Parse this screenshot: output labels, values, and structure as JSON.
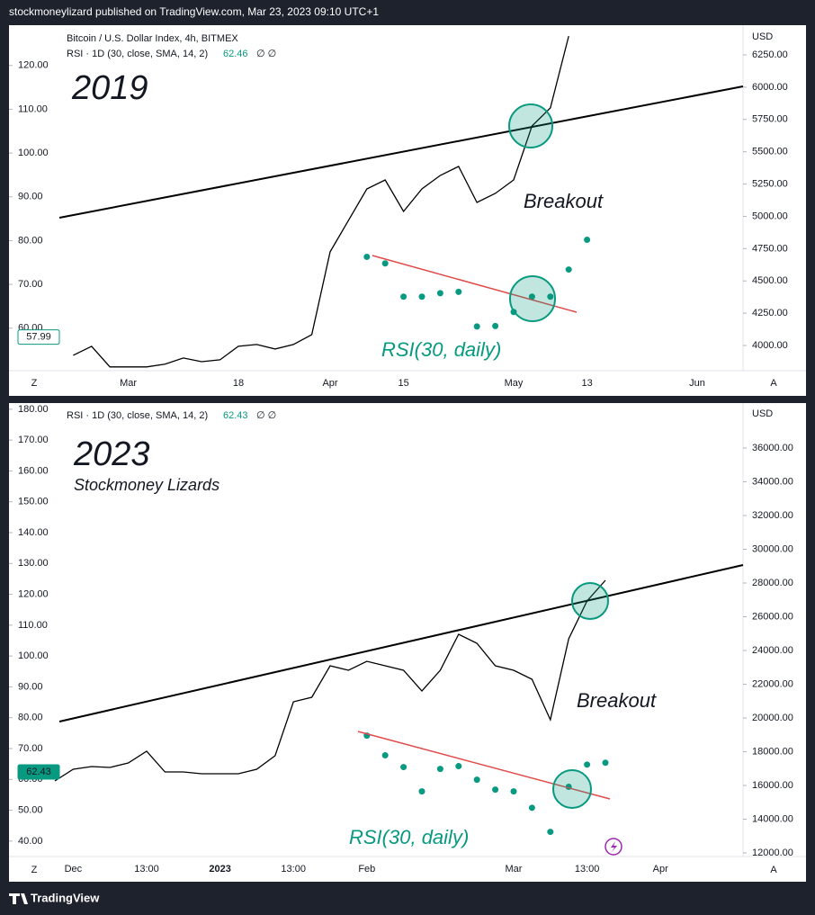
{
  "header": "stockmoneylizard published on TradingView.com, Mar 23, 2023 09:10 UTC+1",
  "footer": "TradingView",
  "chart_data": [
    {
      "type": "line",
      "title": "Bitcoin / U.S. Dollar Index, 4h, BITMEX",
      "indicator": "RSI · 1D (30, close, SMA, 14, 2)",
      "indicator_value": 62.46,
      "indicator_flags": "∅ ∅",
      "year": "2019",
      "annotations": [
        "Breakout",
        "RSI(30, daily)"
      ],
      "currency": "USD",
      "y_badge": 57.99,
      "buttons": [
        "Z",
        "A"
      ],
      "categories": [
        null,
        null,
        null,
        null,
        null,
        null,
        "Mar",
        null,
        null,
        null,
        null,
        null,
        "18",
        null,
        null,
        null,
        null,
        "Apr",
        null,
        null,
        null,
        "15",
        null,
        null,
        null,
        null,
        null,
        "May",
        null,
        null,
        null,
        "13",
        null,
        null,
        null,
        null,
        null,
        "Jun",
        null,
        null
      ],
      "series": [
        {
          "color": "#000000",
          "axis": "y2",
          "values": [
            null,
            null,
            null,
            3924,
            3994,
            3834,
            3834,
            3834,
            3855,
            3903,
            3875,
            3889,
            3994,
            4008,
            3973,
            4008,
            4084,
            4725,
            4969,
            5212,
            5282,
            5038,
            5212,
            5317,
            5386,
            5108,
            5177,
            5282,
            5700,
            5839,
            6396,
            null,
            null,
            null,
            null,
            null,
            null,
            null,
            null,
            null
          ]
        },
        {
          "color": "#089981",
          "marker": "dot",
          "values": [
            null,
            null,
            null,
            null,
            null,
            null,
            null,
            null,
            null,
            null,
            null,
            null,
            null,
            null,
            null,
            null,
            null,
            null,
            null,
            76.3,
            74.8,
            67.2,
            67.2,
            68,
            68.3,
            60.4,
            60.5,
            63.7,
            67.2,
            67.2,
            73.4,
            80.2,
            null,
            null,
            null,
            null,
            null,
            null,
            null,
            null
          ]
        }
      ],
      "ylim": [
        50.3,
        129.2
      ],
      "yticks": [
        {
          "value": 60,
          "label": "60.00"
        },
        {
          "value": 70,
          "label": "70.00"
        },
        {
          "value": 80,
          "label": "80.00"
        },
        {
          "value": 90,
          "label": "90.00"
        },
        {
          "value": 100,
          "label": "100.00"
        },
        {
          "value": 110,
          "label": "110.00"
        },
        {
          "value": 120,
          "label": "120.00"
        }
      ],
      "y2lim": [
        3805,
        6480
      ],
      "y2ticks": [
        {
          "value": 4000,
          "label": "4000.00"
        },
        {
          "value": 4250,
          "label": "4250.00"
        },
        {
          "value": 4500,
          "label": "4500.00"
        },
        {
          "value": 4750,
          "label": "4750.00"
        },
        {
          "value": 5000,
          "label": "5000.00"
        },
        {
          "value": 5250,
          "label": "5250.00"
        },
        {
          "value": 5500,
          "label": "5500.00"
        },
        {
          "value": 5750,
          "label": "5750.00"
        },
        {
          "value": 6000,
          "label": "6000.00"
        },
        {
          "value": 6250,
          "label": "6250.00"
        }
      ]
    },
    {
      "type": "line",
      "indicator": "RSI · 1D (30, close, SMA, 14, 2)",
      "indicator_value": 62.43,
      "indicator_flags": "∅ ∅",
      "year": "2023",
      "subtitle": "Stockmoney Lizards",
      "annotations": [
        "Breakout",
        "RSI(30, daily)"
      ],
      "currency": "USD",
      "y_badge": 62.43,
      "buttons": [
        "Z",
        "A"
      ],
      "categories": [
        null,
        null,
        null,
        "Dec",
        null,
        null,
        null,
        "13:00",
        null,
        null,
        null,
        "2023",
        null,
        null,
        null,
        "13:00",
        null,
        null,
        null,
        "Feb",
        null,
        null,
        null,
        null,
        null,
        null,
        null,
        "Mar",
        null,
        null,
        null,
        "13:00",
        null,
        null,
        null,
        "Apr",
        null,
        null,
        null,
        null
      ],
      "series": [
        {
          "color": "#000000",
          "axis": "y2",
          "values": [
            null,
            null,
            16267,
            16960,
            17120,
            17067,
            17333,
            18027,
            16800,
            16800,
            16693,
            16693,
            16693,
            16960,
            17760,
            20960,
            21227,
            23093,
            22827,
            23360,
            23093,
            22827,
            21600,
            22827,
            24960,
            24427,
            23093,
            22827,
            22293,
            19893,
            24693,
            26933,
            28160,
            null,
            null,
            null,
            null,
            null,
            null,
            null
          ]
        },
        {
          "color": "#089981",
          "marker": "dot",
          "values": [
            null,
            null,
            null,
            null,
            null,
            null,
            null,
            null,
            null,
            null,
            null,
            null,
            null,
            null,
            null,
            null,
            null,
            null,
            null,
            74.2,
            67.8,
            64,
            56.1,
            63.4,
            64.3,
            59.9,
            56.7,
            56.1,
            50.8,
            43,
            57.6,
            64.8,
            65.4,
            null,
            null,
            null,
            null,
            null,
            null,
            null
          ]
        }
      ],
      "ylim": [
        35,
        182
      ],
      "yticks": [
        {
          "value": 40,
          "label": "40.00"
        },
        {
          "value": 50,
          "label": "50.00"
        },
        {
          "value": 60,
          "label": "60.00"
        },
        {
          "value": 70,
          "label": "70.00"
        },
        {
          "value": 80,
          "label": "80.00"
        },
        {
          "value": 90,
          "label": "90.00"
        },
        {
          "value": 100,
          "label": "100.00"
        },
        {
          "value": 110,
          "label": "110.00"
        },
        {
          "value": 120,
          "label": "120.00"
        },
        {
          "value": 130,
          "label": "130.00"
        },
        {
          "value": 140,
          "label": "140.00"
        },
        {
          "value": 150,
          "label": "150.00"
        },
        {
          "value": 160,
          "label": "160.00"
        },
        {
          "value": 170,
          "label": "170.00"
        },
        {
          "value": 180,
          "label": "180.00"
        }
      ],
      "y2lim": [
        11787,
        38667
      ],
      "y2ticks": [
        {
          "value": 12000,
          "label": "12000.00"
        },
        {
          "value": 14000,
          "label": "14000.00"
        },
        {
          "value": 16000,
          "label": "16000.00"
        },
        {
          "value": 18000,
          "label": "18000.00"
        },
        {
          "value": 20000,
          "label": "20000.00"
        },
        {
          "value": 22000,
          "label": "22000.00"
        },
        {
          "value": 24000,
          "label": "24000.00"
        },
        {
          "value": 26000,
          "label": "26000.00"
        },
        {
          "value": 28000,
          "label": "28000.00"
        },
        {
          "value": 30000,
          "label": "30000.00"
        },
        {
          "value": 32000,
          "label": "32000.00"
        },
        {
          "value": 34000,
          "label": "34000.00"
        },
        {
          "value": 36000,
          "label": "36000.00"
        }
      ]
    }
  ]
}
